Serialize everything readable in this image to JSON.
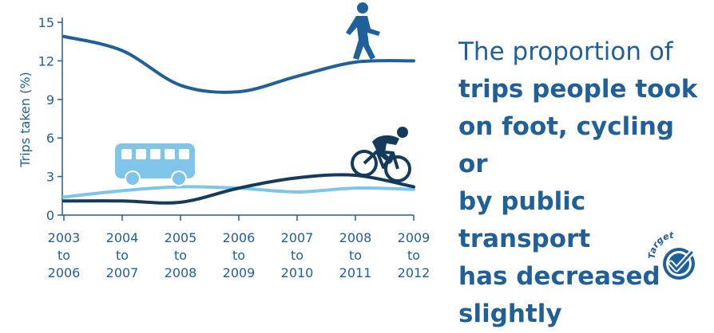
{
  "chart_data": {
    "type": "line",
    "categories": [
      [
        "2003",
        "to",
        "2006"
      ],
      [
        "2004",
        "to",
        "2007"
      ],
      [
        "2005",
        "to",
        "2008"
      ],
      [
        "2006",
        "to",
        "2009"
      ],
      [
        "2007",
        "to",
        "2010"
      ],
      [
        "2008",
        "to",
        "2011"
      ],
      [
        "2009",
        "to",
        "2012"
      ]
    ],
    "ylabel": "Trips taken (%)",
    "ylim": [
      0,
      15
    ],
    "yticks": [
      "0",
      "3",
      "6",
      "9",
      "12",
      "15"
    ],
    "grid": false,
    "series": [
      {
        "icon": "walking-person-icon",
        "color": "#1f5f9a",
        "values": [
          13.9,
          12.8,
          10.1,
          9.6,
          10.8,
          11.9,
          12.0
        ]
      },
      {
        "icon": "bus-icon",
        "color": "#7fc5ea",
        "values": [
          1.4,
          1.9,
          2.2,
          2.1,
          1.8,
          2.1,
          2.0
        ]
      },
      {
        "icon": "cyclist-icon",
        "color": "#143a5c",
        "values": [
          1.1,
          1.1,
          1.0,
          2.1,
          2.9,
          3.1,
          2.2
        ]
      }
    ]
  },
  "headline": {
    "line1": "The proportion of",
    "line2": "trips people took",
    "line3": "on foot, cycling or",
    "line4": "by public transport",
    "line5": "has decreased",
    "line6": "slightly"
  },
  "badge": {
    "text": "Target",
    "icon": "checkmark-badge-icon"
  },
  "colors": {
    "primary": "#1f5f9a",
    "dark": "#143a5c",
    "light": "#7fc5ea"
  }
}
